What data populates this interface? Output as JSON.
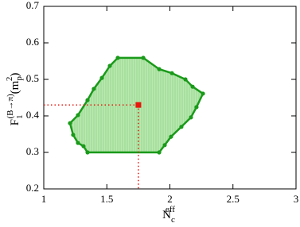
{
  "chart_data": {
    "type": "region",
    "xlim": [
      1,
      3
    ],
    "xticks": [
      1,
      1.5,
      2,
      2.5,
      3
    ],
    "ylim": [
      0.2,
      0.7
    ],
    "yticks": [
      0.2,
      0.3,
      0.4,
      0.5,
      0.6,
      0.7
    ],
    "xlabel_parts": [
      "N",
      "c",
      "eff"
    ],
    "ylabel_parts": [
      "F",
      "1",
      "(B→π)",
      "(m",
      "p",
      "2",
      ")"
    ],
    "series": [
      {
        "color": "#1a9a1a",
        "fill": "#a8e0a0",
        "x": [
          1.587,
          1.789,
          1.915,
          2.016,
          2.123,
          2.18,
          2.262,
          2.211,
          2.167,
          2.091,
          2.009,
          1.959,
          1.915,
          1.347,
          1.315,
          1.271,
          1.233,
          1.208,
          1.271,
          1.347,
          1.397,
          1.461,
          1.524
        ],
        "y": [
          0.559,
          0.559,
          0.528,
          0.517,
          0.5,
          0.48,
          0.461,
          0.424,
          0.396,
          0.37,
          0.343,
          0.32,
          0.3,
          0.3,
          0.317,
          0.326,
          0.348,
          0.38,
          0.402,
          0.443,
          0.474,
          0.504,
          0.537
        ]
      },
      {
        "color": "#e8160c",
        "x": [
          1.75
        ],
        "y": [
          0.43
        ]
      }
    ]
  }
}
